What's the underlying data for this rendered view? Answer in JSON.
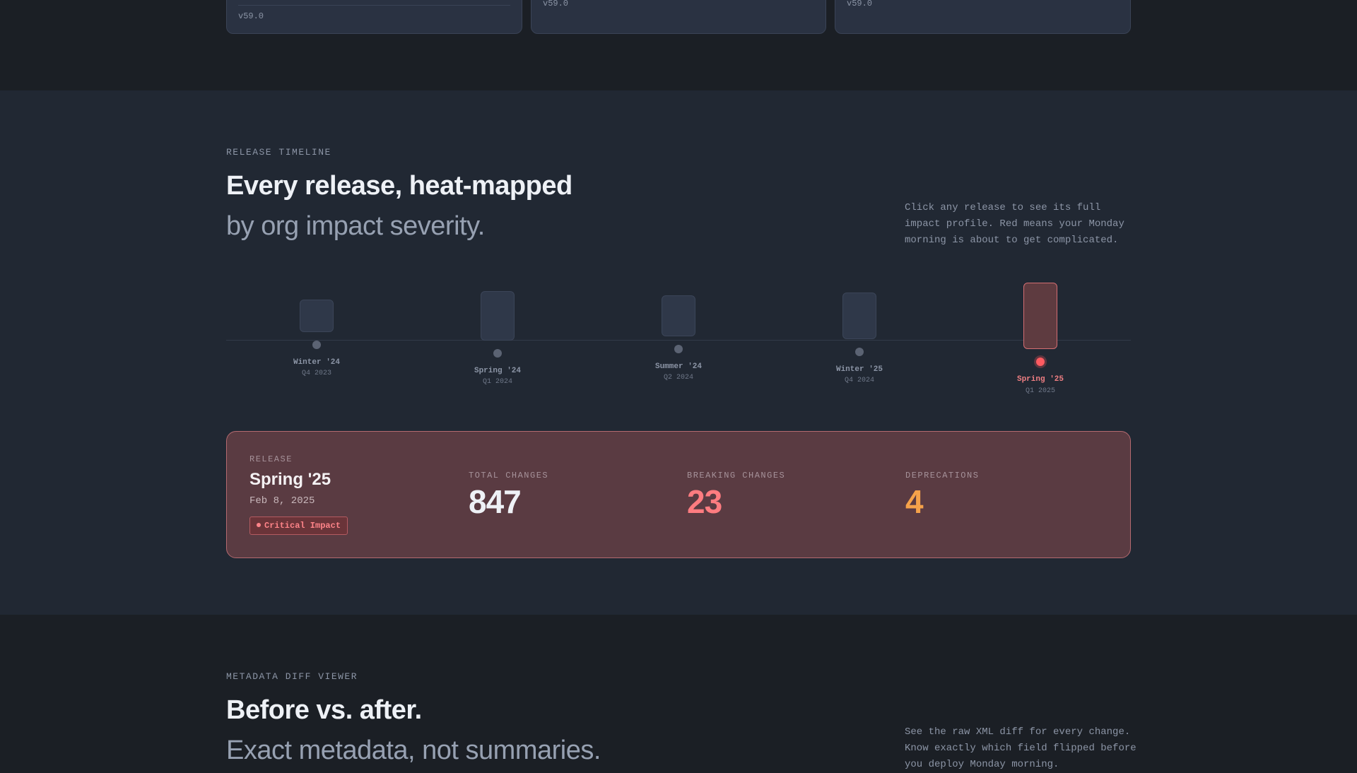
{
  "top_cards": [
    {
      "version": "v59.0"
    },
    {
      "version": "v59.0"
    },
    {
      "version": "v59.0"
    }
  ],
  "timeline": {
    "eyebrow": "RELEASE TIMELINE",
    "title": "Every release, heat-mapped",
    "subtitle": "by org impact severity.",
    "note": "Click any release to see its full impact profile. Red means your Monday morning is about to get complicated.",
    "releases": [
      {
        "name": "Winter '24",
        "quarter": "Q4 2023",
        "active": false
      },
      {
        "name": "Spring '24",
        "quarter": "Q1 2024",
        "active": false
      },
      {
        "name": "Summer '24",
        "quarter": "Q2 2024",
        "active": false
      },
      {
        "name": "Winter '25",
        "quarter": "Q4 2024",
        "active": false
      },
      {
        "name": "Spring '25",
        "quarter": "Q1 2025",
        "active": true
      }
    ]
  },
  "selected_release": {
    "label": "RELEASE",
    "name": "Spring '25",
    "date": "Feb 8, 2025",
    "badge": "Critical Impact",
    "stats": [
      {
        "label": "TOTAL CHANGES",
        "value": "847",
        "color": "#eef1f6"
      },
      {
        "label": "BREAKING CHANGES",
        "value": "23",
        "color": "#ff7c80"
      },
      {
        "label": "DEPRECATIONS",
        "value": "4",
        "color": "#f5a24a"
      }
    ]
  },
  "diff_viewer": {
    "eyebrow": "METADATA DIFF VIEWER",
    "title": "Before vs. after.",
    "subtitle": "Exact metadata, not summaries.",
    "note": "See the raw XML diff for every change. Know exactly which field flipped before you deploy Monday morning."
  },
  "colors": {
    "background": "#1b1f25",
    "section": "#212833",
    "critical": "#ff5b61",
    "critical_card": "#5a3b42"
  }
}
